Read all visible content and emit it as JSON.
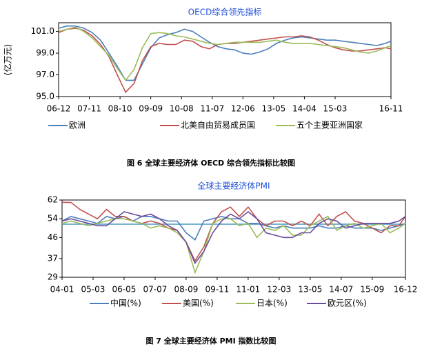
{
  "chart_data": [
    {
      "type": "line",
      "title": "OECD综合领先指标",
      "y_label": "(亿万元)",
      "caption": "图 6 全球主要经济体 OECD 综合领先指标比较图",
      "x": [
        "06-12",
        "07-03",
        "07-06",
        "07-09",
        "07-12",
        "08-03",
        "08-06",
        "08-09",
        "08-12",
        "09-03",
        "09-06",
        "09-09",
        "09-12",
        "10-03",
        "10-06",
        "10-09",
        "10-12",
        "11-03",
        "11-06",
        "11-09",
        "11-12",
        "12-03",
        "12-06",
        "12-09",
        "12-12",
        "13-03",
        "13-06",
        "13-09",
        "13-12",
        "14-03",
        "14-06",
        "14-09",
        "14-12",
        "15-03",
        "15-06",
        "15-09",
        "15-12",
        "16-03",
        "16-06",
        "16-09",
        "16-11"
      ],
      "xticks": [
        "06-12",
        "07-11",
        "08-10",
        "09-09",
        "10-08",
        "11-07",
        "12-06",
        "13-05",
        "14-04",
        "15-03",
        "16-11"
      ],
      "ylim": [
        95,
        101.8
      ],
      "yticks": [
        {
          "value": 95,
          "label": "95.0"
        },
        {
          "value": 97,
          "label": "97.0"
        },
        {
          "value": 99,
          "label": "99.0"
        },
        {
          "value": 101,
          "label": "101.0"
        }
      ],
      "series": [
        {
          "name": "欧洲",
          "color": "#4a7ebb",
          "values": [
            101.3,
            101.5,
            101.5,
            101.3,
            100.9,
            100.2,
            99.0,
            97.8,
            96.5,
            96.5,
            98.0,
            99.5,
            100.4,
            100.7,
            100.9,
            101.2,
            101.0,
            100.5,
            100.0,
            99.6,
            99.4,
            99.3,
            99.0,
            98.9,
            99.1,
            99.4,
            99.9,
            100.2,
            100.4,
            100.5,
            100.4,
            100.3,
            100.2,
            100.2,
            100.1,
            100.0,
            99.9,
            99.8,
            99.7,
            99.9,
            100.1
          ]
        },
        {
          "name": "北美自由贸易成员国",
          "color": "#c0504d",
          "values": [
            100.9,
            101.2,
            101.3,
            101.1,
            100.6,
            99.8,
            98.7,
            97.0,
            95.4,
            96.2,
            98.3,
            99.6,
            99.9,
            99.8,
            99.8,
            100.2,
            100.1,
            99.6,
            99.4,
            99.8,
            99.9,
            99.9,
            100.0,
            100.1,
            100.2,
            100.3,
            100.4,
            100.5,
            100.5,
            100.6,
            100.5,
            100.2,
            99.8,
            99.5,
            99.3,
            99.2,
            99.2,
            99.3,
            99.4,
            99.5,
            99.4
          ]
        },
        {
          "name": "五个主要亚洲国家",
          "color": "#9bbb59",
          "values": [
            101.0,
            101.2,
            101.4,
            101.0,
            100.4,
            99.6,
            98.8,
            97.6,
            96.5,
            97.5,
            99.5,
            100.8,
            100.9,
            100.8,
            100.6,
            100.5,
            100.3,
            100.1,
            99.9,
            99.8,
            99.9,
            100.0,
            100.0,
            100.0,
            100.0,
            100.1,
            100.2,
            100.0,
            99.9,
            99.9,
            99.9,
            99.8,
            99.7,
            99.6,
            99.5,
            99.3,
            99.1,
            99.0,
            99.2,
            99.5,
            99.7
          ]
        }
      ]
    },
    {
      "type": "line",
      "title": "全球主要经济体PMI",
      "caption": "图 7 全球主要经济体 PMI 指数比较图",
      "x": [
        "04-01",
        "04-05",
        "04-09",
        "05-01",
        "05-05",
        "05-09",
        "06-01",
        "06-05",
        "06-09",
        "07-01",
        "07-05",
        "07-09",
        "08-01",
        "08-05",
        "08-09",
        "09-01",
        "09-05",
        "09-09",
        "10-01",
        "10-05",
        "10-09",
        "11-01",
        "11-05",
        "11-09",
        "12-01",
        "12-05",
        "12-09",
        "13-01",
        "13-05",
        "13-09",
        "14-01",
        "14-05",
        "14-09",
        "15-01",
        "15-05",
        "15-09",
        "16-01",
        "16-05",
        "16-09",
        "16-12"
      ],
      "xticks": [
        "04-01",
        "05-03",
        "06-05",
        "07-07",
        "08-09",
        "09-11",
        "11-01",
        "12-03",
        "13-05",
        "14-07",
        "15-09",
        "16-12"
      ],
      "ylim": [
        29,
        62
      ],
      "yticks": [
        29,
        37,
        46,
        54,
        62
      ],
      "hline": {
        "value": 51.7,
        "color": "#4a9ac0"
      },
      "series": [
        {
          "name": "中国(%)",
          "color": "#4a7ebb",
          "values": [
            53,
            55,
            54,
            53,
            52,
            55,
            54,
            55,
            53,
            55,
            55,
            54,
            53,
            53,
            48,
            45,
            53,
            54,
            55,
            54,
            54,
            52,
            52,
            51,
            50,
            51,
            50,
            50,
            50,
            51,
            50,
            50,
            51,
            50,
            50,
            50,
            49,
            50,
            51,
            52
          ]
        },
        {
          "name": "美国(%)",
          "color": "#c0504d",
          "values": [
            61,
            61,
            58,
            56,
            54,
            58,
            55,
            55,
            53,
            52,
            53,
            52,
            50,
            49,
            44,
            36,
            42,
            52,
            57,
            59,
            55,
            59,
            54,
            51,
            53,
            53,
            51,
            53,
            51,
            56,
            51,
            55,
            57,
            53,
            52,
            50,
            48,
            51,
            51,
            55
          ]
        },
        {
          "name": "日本(%)",
          "color": "#9bbb59",
          "values": [
            52,
            53,
            52,
            51,
            52,
            53,
            54,
            54,
            53,
            52,
            50,
            51,
            50,
            48,
            44,
            31,
            40,
            52,
            54,
            54,
            51,
            52,
            46,
            50,
            49,
            51,
            47,
            47,
            51,
            53,
            55,
            49,
            51,
            52,
            50,
            51,
            52,
            48,
            50,
            52
          ]
        },
        {
          "name": "欧元区(%)",
          "color": "#6a4a9c",
          "values": [
            53,
            54,
            53,
            52,
            51,
            51,
            54,
            57,
            56,
            55,
            56,
            54,
            51,
            49,
            44,
            35,
            40,
            48,
            53,
            56,
            54,
            57,
            54,
            48,
            47,
            46,
            46,
            48,
            48,
            52,
            54,
            53,
            50,
            51,
            52,
            52,
            52,
            52,
            53,
            55
          ]
        }
      ]
    }
  ]
}
